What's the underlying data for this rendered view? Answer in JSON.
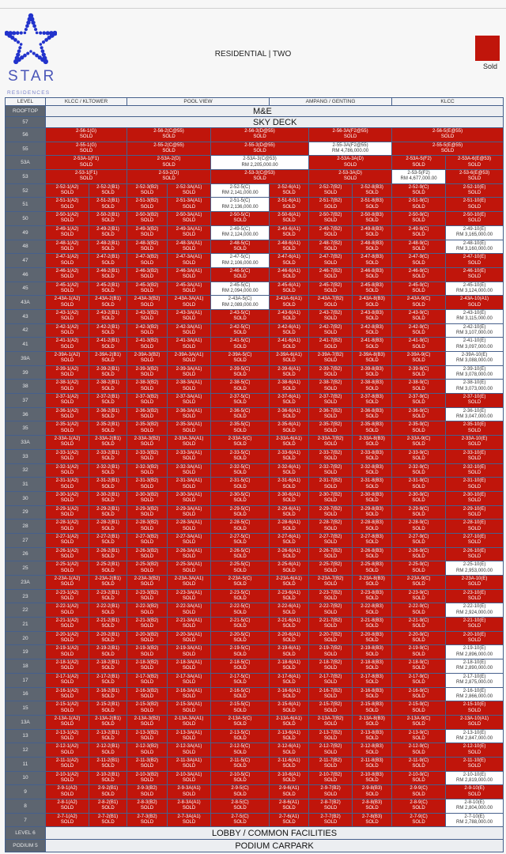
{
  "brand": {
    "logo_text": "STAR",
    "logo_subtext": "RESIDENCES",
    "logo_color": "#2233cc"
  },
  "title": "RESIDENTIAL | TWO",
  "legend": {
    "label": "Sold",
    "color": "#c0150b"
  },
  "header": {
    "level": "LEVEL",
    "views": [
      "KLCC / KLTOWER",
      "POOL VIEW",
      "AMPANG / GENTING",
      "KLCC"
    ]
  },
  "sold_label": "SOLD",
  "bands_top": [
    {
      "level": "ROOFTOP",
      "label": "M&E"
    },
    {
      "level": "57",
      "label": "SKY DECK"
    }
  ],
  "top_floors": [
    {
      "level": "56",
      "units": [
        {
          "unit": "2-56-1(G)",
          "status": "SOLD"
        },
        {
          "unit": "2-56-2(C@55)",
          "status": "SOLD"
        },
        {
          "unit": "2-56-3(D@55)",
          "status": "SOLD"
        },
        {
          "unit": "2-56-3A(F2@55)",
          "status": "SOLD"
        },
        {
          "unit": "2-56-5(E@55)",
          "status": "SOLD"
        }
      ]
    },
    {
      "level": "55",
      "units": [
        {
          "unit": "2-55-1(G)",
          "status": "SOLD"
        },
        {
          "unit": "2-55-2(C@55)",
          "status": "SOLD"
        },
        {
          "unit": "2-55-3(D@55)",
          "status": "SOLD"
        },
        {
          "unit": "2-55-3A(F2@55)",
          "status": "RM 4,786,000.00"
        },
        {
          "unit": "2-55-5(E@55)",
          "status": "SOLD"
        }
      ]
    },
    {
      "level": "53A",
      "units": [
        {
          "unit": "2-53A-1(F1)",
          "status": "SOLD"
        },
        {
          "unit": "2-53A-2(D)",
          "status": "SOLD"
        },
        {
          "unit": "2-53A-3(C@53)",
          "status": "RM 2,205,000.00"
        },
        {
          "unit": "2-53A-3A(D)",
          "status": "SOLD"
        },
        {
          "unit": "2-53A-5(F2)",
          "status": "SOLD"
        },
        {
          "unit": "2-53A-6(E@53)",
          "status": "SOLD"
        }
      ]
    },
    {
      "level": "53",
      "units": [
        {
          "unit": "2-53-1(F1)",
          "status": "SOLD"
        },
        {
          "unit": "2-53-2(D)",
          "status": "SOLD"
        },
        {
          "unit": "2-53-3(C@53)",
          "status": "SOLD"
        },
        {
          "unit": "2-53-3A(D)",
          "status": "SOLD"
        },
        {
          "unit": "2-53-5(F2)",
          "status": "RM 4,677,000.00"
        },
        {
          "unit": "2-53-6(E@53)",
          "status": "SOLD"
        }
      ]
    }
  ],
  "standard_unit_types": [
    "1(A2)",
    "2(B1)",
    "3(B2)",
    "3A(A1)",
    "5(C)",
    "6(A1)",
    "7(B2)",
    "8(B3)",
    "9(C)",
    "10(E)"
  ],
  "standard_floors": [
    {
      "level": "52",
      "available": {
        "5(C)": "RM 2,141,000.00"
      }
    },
    {
      "level": "51",
      "available": {
        "5(C)": "RM 2,136,000.00"
      }
    },
    {
      "level": "50",
      "available": {}
    },
    {
      "level": "49",
      "available": {
        "5(C)": "RM 2,124,000.00",
        "10(E)": "RM 3,165,000.00"
      }
    },
    {
      "level": "48",
      "available": {
        "10(E)": "RM 3,160,000.00"
      }
    },
    {
      "level": "47",
      "available": {
        "5(C)": "RM 2,106,000.00"
      }
    },
    {
      "level": "46",
      "available": {}
    },
    {
      "level": "45",
      "available": {
        "5(C)": "RM 2,094,000.00",
        "10(E)": "RM 3,124,000.00"
      }
    },
    {
      "level": "43A",
      "available": {
        "5(C)": "RM 2,089,000.00"
      },
      "unit_overrides": {
        "10(E)": "10(A1)"
      }
    },
    {
      "level": "43",
      "available": {
        "10(E)": "RM 3,115,000.00"
      }
    },
    {
      "level": "42",
      "available": {
        "10(E)": "RM 3,107,000.00"
      }
    },
    {
      "level": "41",
      "available": {
        "10(E)": "RM 3,097,000.00"
      }
    },
    {
      "level": "39A",
      "available": {
        "10(E)": "RM 3,088,000.00"
      }
    },
    {
      "level": "39",
      "available": {
        "10(E)": "RM 3,078,000.00"
      }
    },
    {
      "level": "38",
      "available": {
        "10(E)": "RM 3,073,000.00"
      }
    },
    {
      "level": "37",
      "available": {}
    },
    {
      "level": "36",
      "available": {
        "10(E)": "RM 3,047,000.00"
      }
    },
    {
      "level": "35",
      "available": {}
    },
    {
      "level": "33A",
      "available": {}
    },
    {
      "level": "33",
      "available": {}
    },
    {
      "level": "32",
      "available": {}
    },
    {
      "level": "31",
      "available": {}
    },
    {
      "level": "30",
      "available": {}
    },
    {
      "level": "29",
      "available": {}
    },
    {
      "level": "28",
      "available": {}
    },
    {
      "level": "27",
      "available": {}
    },
    {
      "level": "26",
      "available": {}
    },
    {
      "level": "25",
      "available": {
        "10(E)": "RM 2,953,000.00"
      }
    },
    {
      "level": "23A",
      "available": {}
    },
    {
      "level": "23",
      "available": {}
    },
    {
      "level": "22",
      "available": {
        "10(E)": "RM 2,924,000.00"
      }
    },
    {
      "level": "21",
      "available": {}
    },
    {
      "level": "20",
      "available": {}
    },
    {
      "level": "19",
      "available": {
        "10(E)": "RM 2,896,000.00"
      }
    },
    {
      "level": "18",
      "available": {
        "10(E)": "RM 2,890,000.00"
      }
    },
    {
      "level": "17",
      "available": {
        "10(E)": "RM 2,875,000.00"
      }
    },
    {
      "level": "16",
      "available": {
        "10(E)": "RM 2,866,000.00"
      }
    },
    {
      "level": "15",
      "available": {}
    },
    {
      "level": "13A",
      "available": {},
      "unit_overrides": {
        "10(E)": "10(A1)"
      }
    },
    {
      "level": "13",
      "available": {
        "10(E)": "RM 2,847,000.00"
      }
    },
    {
      "level": "12",
      "available": {}
    },
    {
      "level": "11",
      "available": {}
    },
    {
      "level": "10",
      "available": {
        "10(E)": "RM 2,819,000.00"
      }
    },
    {
      "level": "9",
      "available": {}
    },
    {
      "level": "8",
      "available": {
        "10(E)": "RM 2,804,000.00"
      }
    },
    {
      "level": "7",
      "available": {
        "10(E)": "RM 2,788,000.00"
      }
    }
  ],
  "bands_bottom": [
    {
      "level": "LEVEL 6",
      "label": "LOBBY / COMMON FACILITIES"
    },
    {
      "level": "PODIUM 5",
      "label": "PODIUM CARPARK"
    }
  ]
}
